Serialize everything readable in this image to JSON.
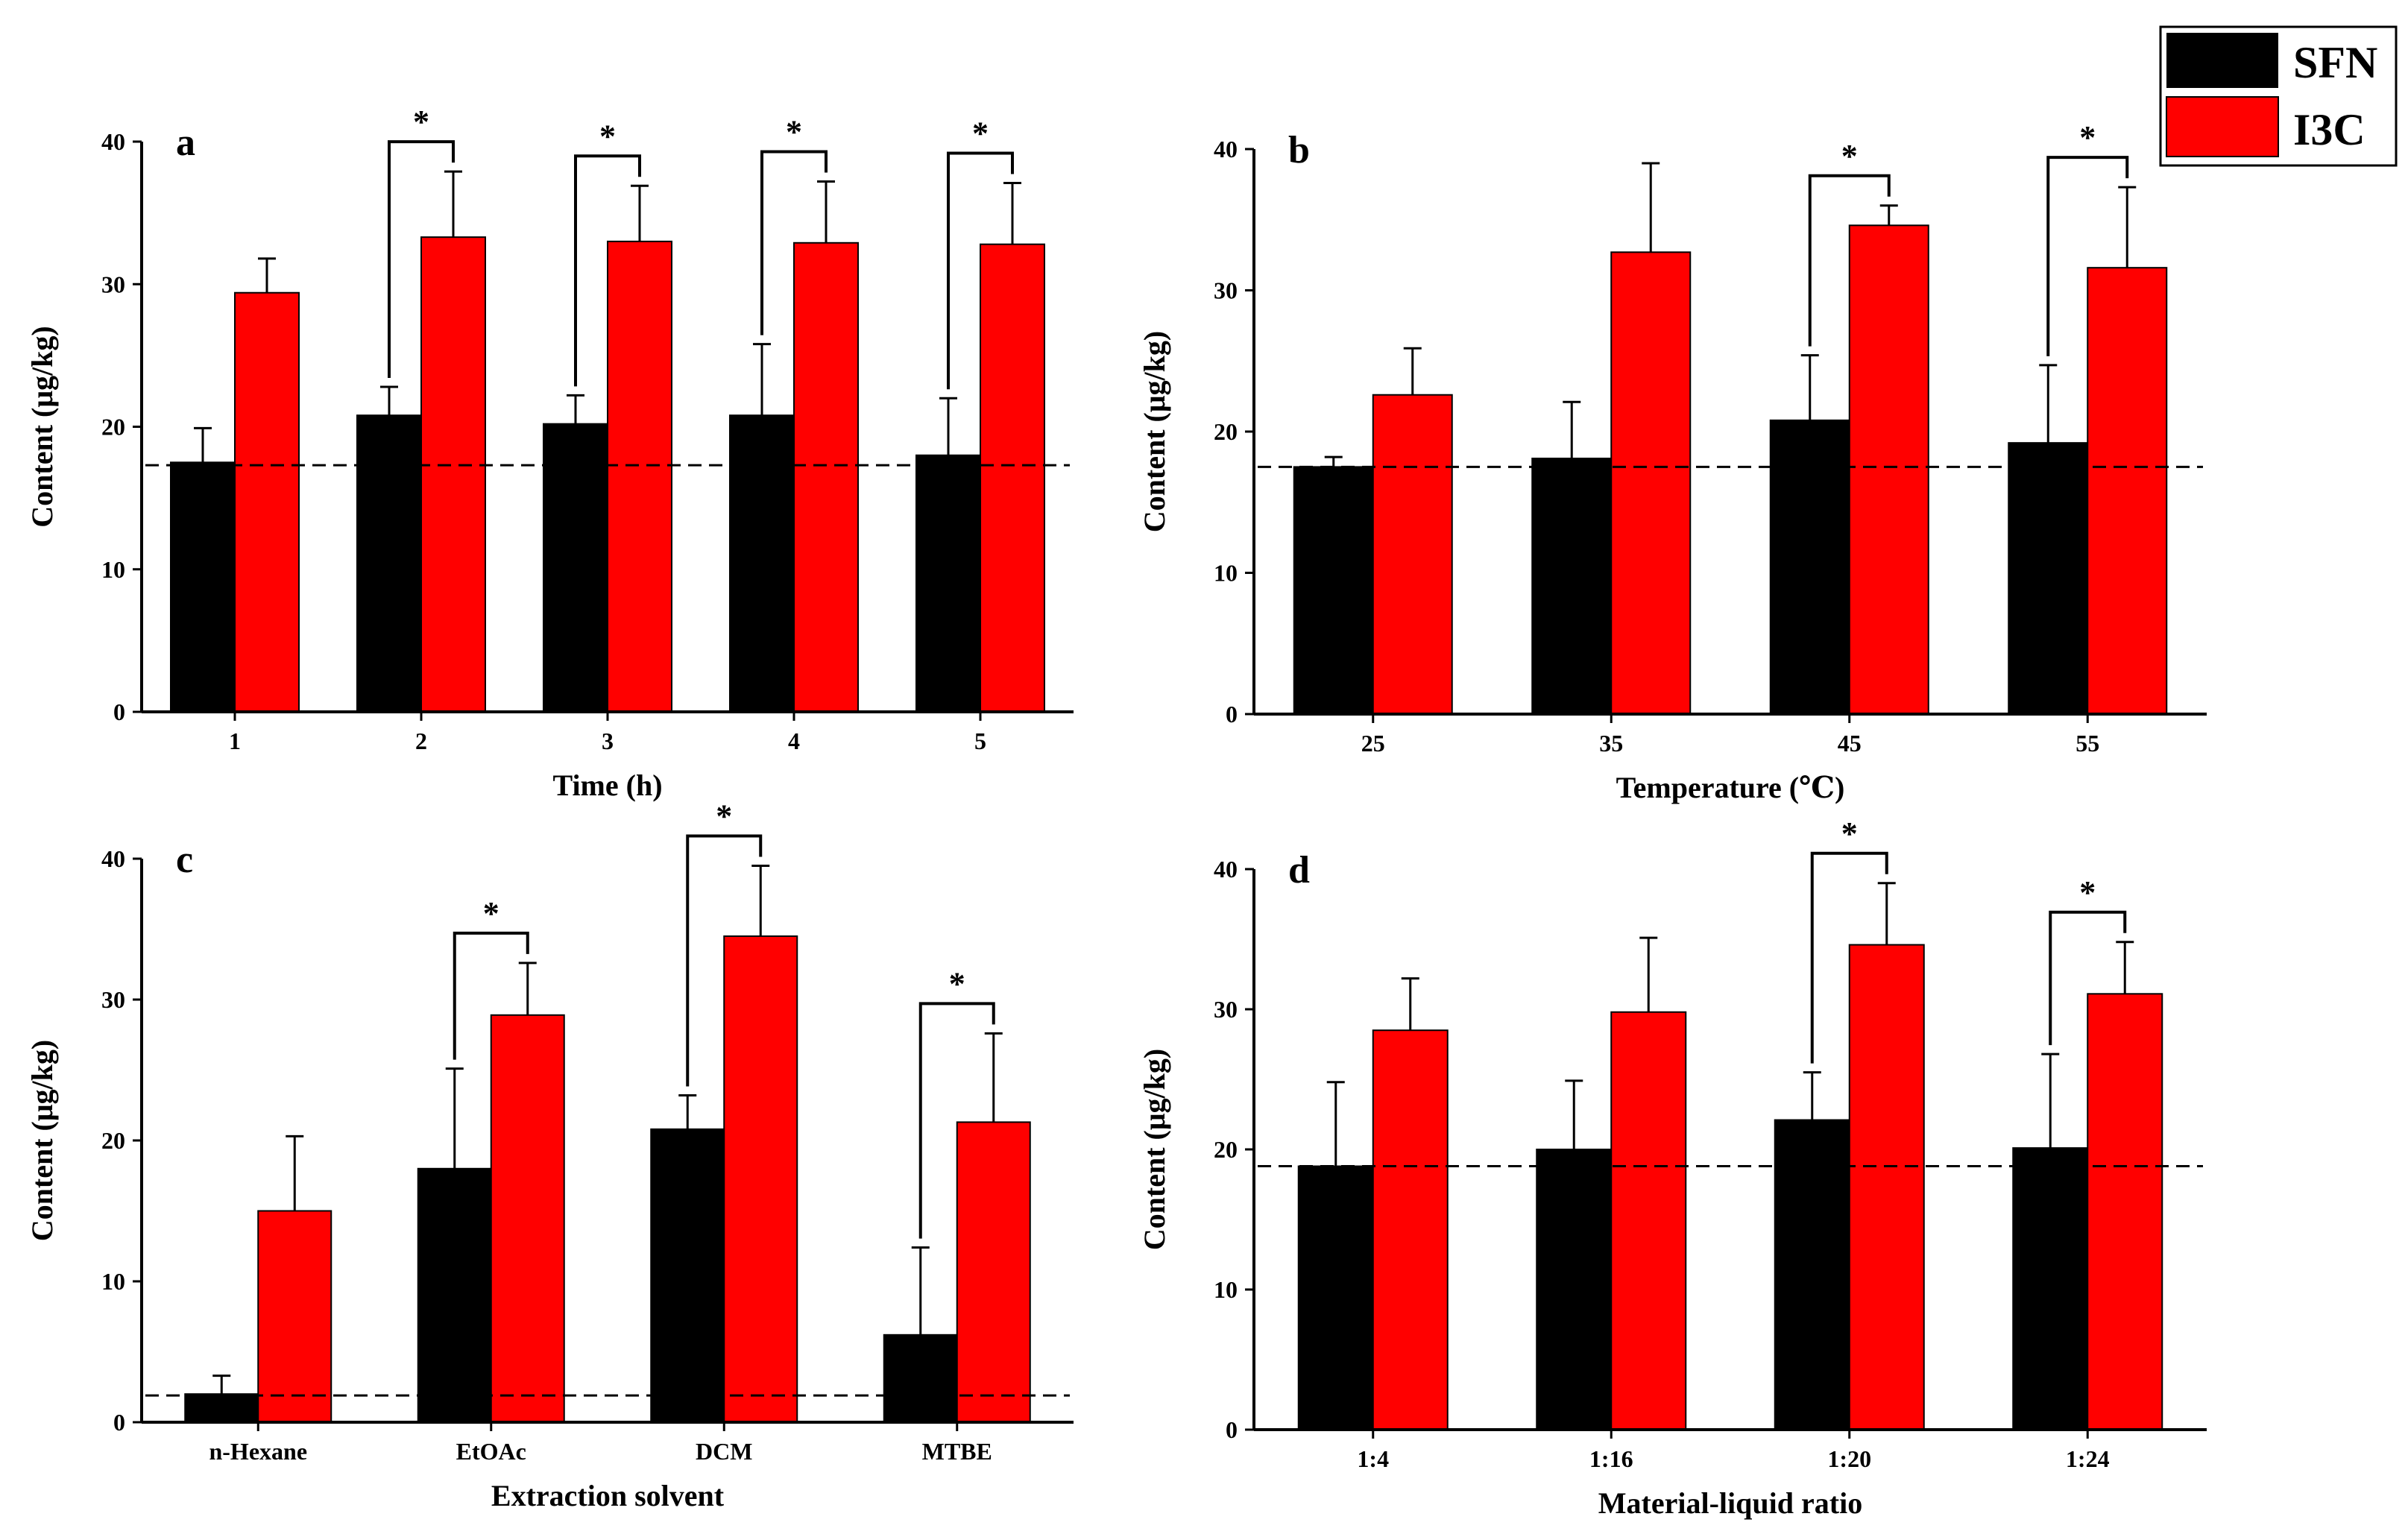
{
  "colors": {
    "sfn": "#000000",
    "i3c": "#ff0000",
    "axis": "#000000",
    "background": "#ffffff"
  },
  "legend": {
    "items": [
      {
        "label": "SFN",
        "color": "#000000"
      },
      {
        "label": "I3C",
        "color": "#ff0000"
      }
    ]
  },
  "chart_data": [
    {
      "type": "bar",
      "panel": "a",
      "xlabel": "Time (h)",
      "ylabel": "Content (μg/kg)",
      "ylim": [
        0,
        40
      ],
      "yticks": [
        0,
        10,
        20,
        30,
        40
      ],
      "categories": [
        "1",
        "2",
        "3",
        "4",
        "5"
      ],
      "series": [
        {
          "name": "SFN",
          "values": [
            17.5,
            20.8,
            20.2,
            20.8,
            18.0
          ],
          "errors": [
            2.4,
            2.0,
            2.0,
            5.0,
            4.0
          ]
        },
        {
          "name": "I3C",
          "values": [
            29.4,
            33.3,
            33.0,
            32.9,
            32.8
          ],
          "errors": [
            2.4,
            4.6,
            3.9,
            4.3,
            4.3
          ]
        }
      ],
      "reference_line": 17.3,
      "significance": [
        {
          "category": "2",
          "label": "*"
        },
        {
          "category": "3",
          "label": "*"
        },
        {
          "category": "4",
          "label": "*"
        },
        {
          "category": "5",
          "label": "*"
        }
      ]
    },
    {
      "type": "bar",
      "panel": "b",
      "xlabel": "Temperature (℃)",
      "ylabel": "Content (μg/kg)",
      "ylim": [
        0,
        40
      ],
      "yticks": [
        0,
        10,
        20,
        30,
        40
      ],
      "categories": [
        "25",
        "35",
        "45",
        "55"
      ],
      "series": [
        {
          "name": "SFN",
          "values": [
            17.5,
            18.1,
            20.8,
            19.2
          ],
          "errors": [
            0.7,
            4.0,
            4.6,
            5.5
          ]
        },
        {
          "name": "I3C",
          "values": [
            22.6,
            32.7,
            34.6,
            31.6
          ],
          "errors": [
            3.3,
            6.3,
            1.4,
            5.7
          ]
        }
      ],
      "reference_line": 17.5,
      "significance": [
        {
          "category": "45",
          "label": "*"
        },
        {
          "category": "55",
          "label": "*"
        }
      ]
    },
    {
      "type": "bar",
      "panel": "c",
      "xlabel": "Extraction solvent",
      "ylabel": "Content (μg/kg)",
      "ylim": [
        0,
        40
      ],
      "yticks": [
        0,
        10,
        20,
        30,
        40
      ],
      "categories": [
        "n-Hexane",
        "EtOAc",
        "DCM",
        "MTBE"
      ],
      "series": [
        {
          "name": "SFN",
          "values": [
            2.0,
            18.0,
            20.8,
            6.2
          ],
          "errors": [
            1.3,
            7.1,
            2.4,
            6.2
          ]
        },
        {
          "name": "I3C",
          "values": [
            15.0,
            28.9,
            34.5,
            21.3
          ],
          "errors": [
            5.3,
            3.7,
            5.0,
            6.3
          ]
        }
      ],
      "reference_line": 1.9,
      "significance": [
        {
          "category": "EtOAc",
          "label": "*"
        },
        {
          "category": "DCM",
          "label": "*"
        },
        {
          "category": "MTBE",
          "label": "*"
        }
      ]
    },
    {
      "type": "bar",
      "panel": "d",
      "xlabel": "Material-liquid ratio",
      "ylabel": "Content (μg/kg)",
      "ylim": [
        0,
        40
      ],
      "yticks": [
        0,
        10,
        20,
        30,
        40
      ],
      "categories": [
        "1:4",
        "1:16",
        "1:20",
        "1:24"
      ],
      "series": [
        {
          "name": "SFN",
          "values": [
            18.8,
            20.0,
            22.1,
            20.1
          ],
          "errors": [
            6.0,
            4.9,
            3.4,
            6.7
          ]
        },
        {
          "name": "I3C",
          "values": [
            28.5,
            29.8,
            34.6,
            31.1
          ],
          "errors": [
            3.7,
            5.3,
            4.4,
            3.7
          ]
        }
      ],
      "reference_line": 18.8,
      "significance": [
        {
          "category": "1:20",
          "label": "*"
        },
        {
          "category": "1:24",
          "label": "*"
        }
      ]
    }
  ]
}
